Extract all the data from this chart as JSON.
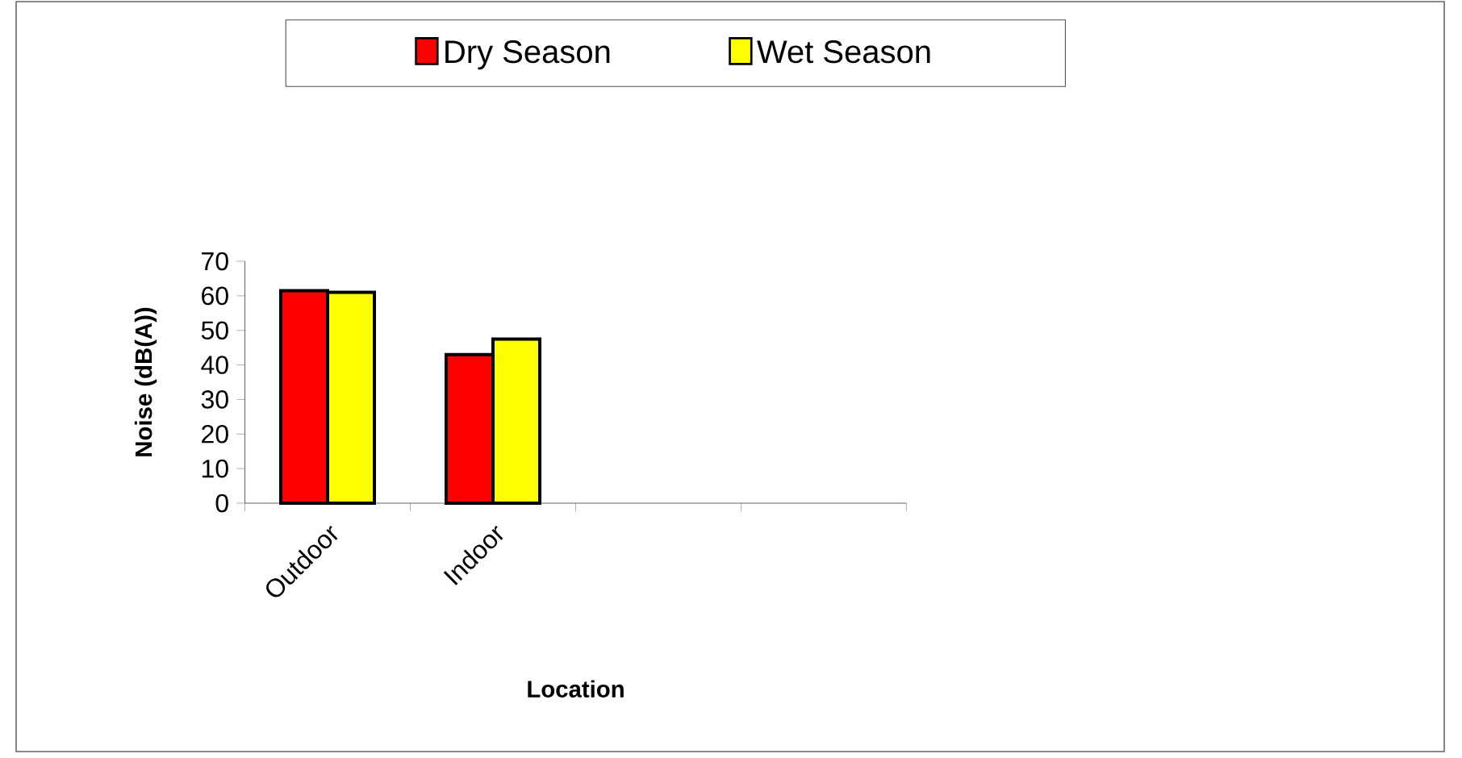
{
  "chart_data": {
    "type": "bar",
    "xlabel": "Location",
    "ylabel": "Noise (dB(A))",
    "categories": [
      "Outdoor",
      "Indoor",
      null,
      null
    ],
    "series": [
      {
        "name": "Dry Season",
        "color": "#ff0000",
        "values": [
          61.5,
          43,
          null,
          null
        ]
      },
      {
        "name": "Wet Season",
        "color": "#ffff00",
        "values": [
          61,
          47.5,
          null,
          null
        ]
      }
    ],
    "ylim": [
      0,
      70
    ],
    "yticks": [
      0,
      10,
      20,
      30,
      40,
      50,
      60,
      70
    ],
    "legend": "top"
  }
}
